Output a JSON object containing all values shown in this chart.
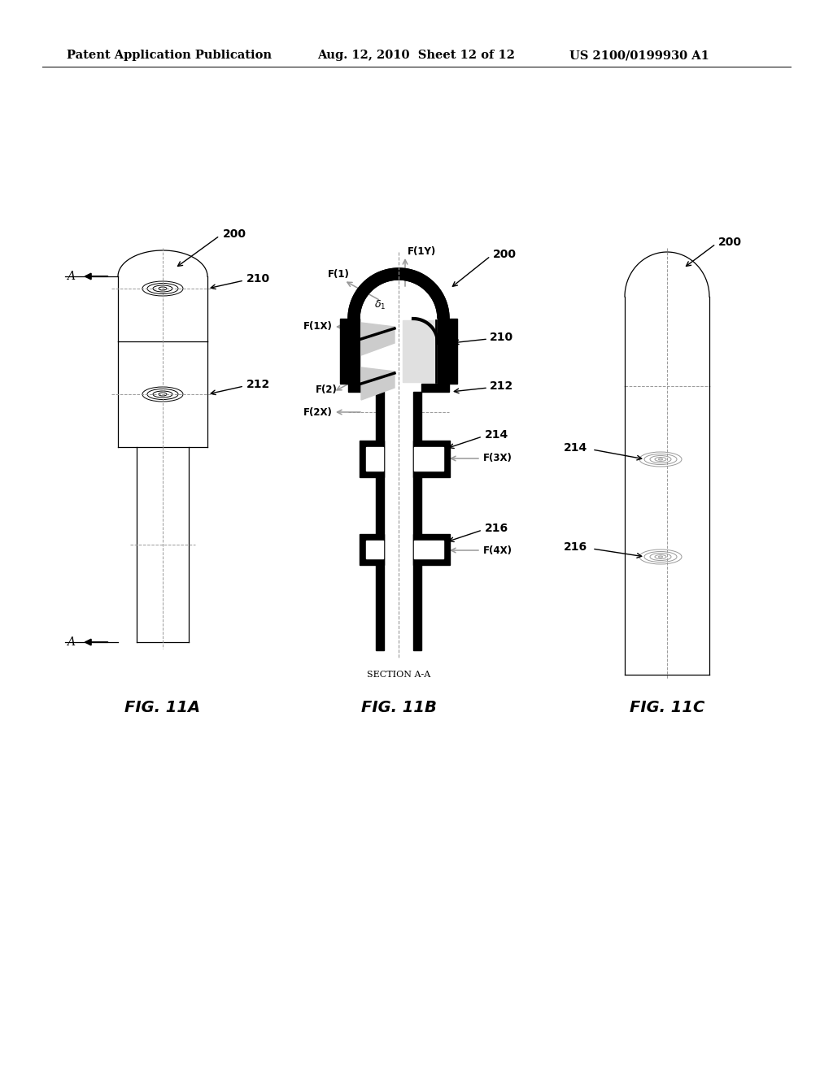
{
  "bg_color": "#ffffff",
  "header_left": "Patent Application Publication",
  "header_mid": "Aug. 12, 2010  Sheet 12 of 12",
  "header_right": "US 2100/0199930 A1",
  "fig_labels": [
    "FIG. 11A",
    "FIG. 11B",
    "FIG. 11C"
  ],
  "section_label": "SECTION A-A",
  "line_color": "#000000",
  "gray_color": "#999999",
  "light_gray": "#cccccc"
}
